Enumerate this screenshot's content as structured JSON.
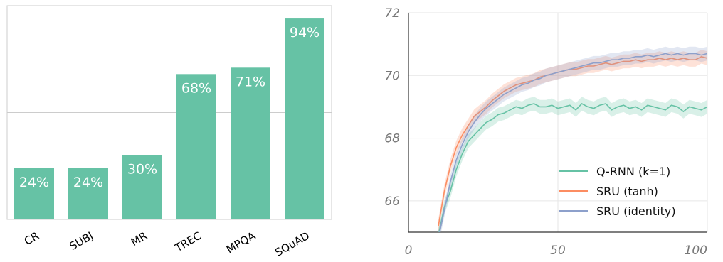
{
  "chart_data": [
    {
      "type": "bar",
      "categories": [
        "CR",
        "SUBJ",
        "MR",
        "TREC",
        "MPQA",
        "SQuAD"
      ],
      "values": [
        24,
        24,
        30,
        68,
        71,
        94
      ],
      "value_labels": [
        "24%",
        "24%",
        "30%",
        "68%",
        "71%",
        "94%"
      ],
      "ylim": [
        0,
        100
      ],
      "color": "#66c2a5",
      "grid": "horizontal line at 50"
    },
    {
      "type": "line",
      "xlim": [
        0,
        100
      ],
      "ylim": [
        65,
        72
      ],
      "x_ticks": [
        "0",
        "50",
        "100"
      ],
      "y_ticks": [
        "66",
        "68",
        "70",
        "72"
      ],
      "grid": true,
      "legend_position": "bottom-right",
      "series": [
        {
          "name": "Q-RNN (k=1)",
          "color": "#66c2a5",
          "x": [
            10,
            12,
            14,
            16,
            18,
            20,
            22,
            24,
            26,
            28,
            30,
            32,
            34,
            36,
            38,
            40,
            42,
            44,
            46,
            48,
            50,
            52,
            54,
            56,
            58,
            60,
            62,
            64,
            66,
            68,
            70,
            72,
            74,
            76,
            78,
            80,
            82,
            84,
            86,
            88,
            90,
            92,
            94,
            96,
            98,
            100
          ],
          "y": [
            64.9,
            65.8,
            66.3,
            67.0,
            67.5,
            67.9,
            68.1,
            68.3,
            68.5,
            68.6,
            68.75,
            68.8,
            68.9,
            69.0,
            68.95,
            69.05,
            69.1,
            69.0,
            69.0,
            69.05,
            68.95,
            69.0,
            69.05,
            68.9,
            69.1,
            69.0,
            68.95,
            69.05,
            69.1,
            68.9,
            69.0,
            69.05,
            68.95,
            69.0,
            68.9,
            69.05,
            69.0,
            68.95,
            68.9,
            69.05,
            69.0,
            68.85,
            69.0,
            68.95,
            68.9,
            69.0
          ]
        },
        {
          "name": "SRU (tanh)",
          "color": "#fc8d62",
          "x": [
            10,
            12,
            14,
            16,
            18,
            20,
            22,
            24,
            26,
            28,
            30,
            32,
            34,
            36,
            38,
            40,
            42,
            44,
            46,
            48,
            50,
            52,
            54,
            56,
            58,
            60,
            62,
            64,
            66,
            68,
            70,
            72,
            74,
            76,
            78,
            80,
            82,
            84,
            86,
            88,
            90,
            92,
            94,
            96,
            98,
            100
          ],
          "y": [
            65.2,
            66.3,
            67.1,
            67.7,
            68.1,
            68.4,
            68.7,
            68.85,
            69.0,
            69.2,
            69.35,
            69.5,
            69.6,
            69.7,
            69.75,
            69.8,
            69.85,
            69.95,
            70.0,
            70.05,
            70.1,
            70.15,
            70.2,
            70.2,
            70.25,
            70.3,
            70.3,
            70.35,
            70.4,
            70.35,
            70.4,
            70.45,
            70.45,
            70.5,
            70.45,
            70.5,
            70.5,
            70.55,
            70.5,
            70.55,
            70.5,
            70.55,
            70.5,
            70.5,
            70.6,
            70.55
          ]
        },
        {
          "name": "SRU (identity)",
          "color": "#8da0cb",
          "x": [
            10,
            12,
            14,
            16,
            18,
            20,
            22,
            24,
            26,
            28,
            30,
            32,
            34,
            36,
            38,
            40,
            42,
            44,
            46,
            48,
            50,
            52,
            54,
            56,
            58,
            60,
            62,
            64,
            66,
            68,
            70,
            72,
            74,
            76,
            78,
            80,
            82,
            84,
            86,
            88,
            90,
            92,
            94,
            96,
            98,
            100
          ],
          "y": [
            64.8,
            65.7,
            66.6,
            67.3,
            67.8,
            68.2,
            68.5,
            68.75,
            68.95,
            69.1,
            69.25,
            69.4,
            69.5,
            69.6,
            69.7,
            69.75,
            69.85,
            69.9,
            70.0,
            70.05,
            70.1,
            70.15,
            70.2,
            70.25,
            70.3,
            70.35,
            70.4,
            70.4,
            70.45,
            70.5,
            70.5,
            70.55,
            70.55,
            70.6,
            70.6,
            70.65,
            70.6,
            70.65,
            70.7,
            70.65,
            70.7,
            70.65,
            70.7,
            70.7,
            70.65,
            70.7
          ]
        }
      ]
    }
  ]
}
